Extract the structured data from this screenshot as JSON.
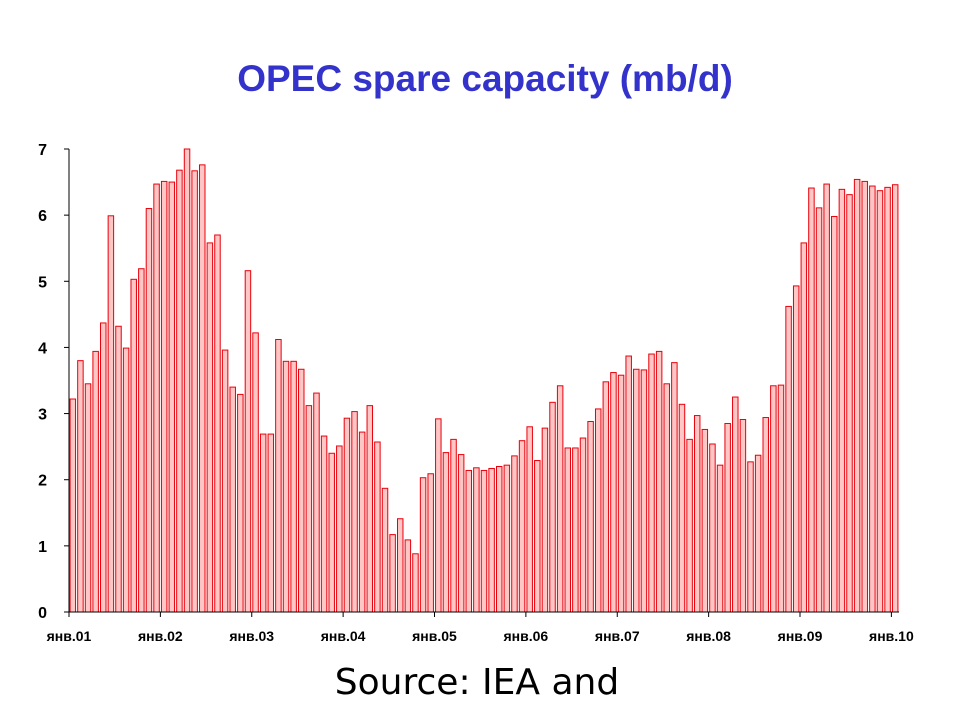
{
  "chart_data": {
    "type": "bar",
    "title": "OPEC spare capacity (mb/d)",
    "xlabel": "",
    "ylabel": "",
    "ylim": [
      0,
      7
    ],
    "yticks": [
      0,
      1,
      2,
      3,
      4,
      5,
      6,
      7
    ],
    "xtick_labels": [
      "янв.01",
      "янв.02",
      "янв.03",
      "янв.04",
      "янв.05",
      "янв.06",
      "янв.07",
      "янв.08",
      "янв.09",
      "янв.10"
    ],
    "grid": false,
    "legend": "none",
    "colors": {
      "bar_fill": "#ffc6c6",
      "bar_stroke": "#e8000b",
      "axis": "#000000"
    },
    "values": [
      3.22,
      3.8,
      3.45,
      3.94,
      4.37,
      5.99,
      4.32,
      3.99,
      5.03,
      5.19,
      6.1,
      6.47,
      6.51,
      6.5,
      6.68,
      7.0,
      6.67,
      6.76,
      5.58,
      5.7,
      3.96,
      3.4,
      3.29,
      5.16,
      4.22,
      2.69,
      2.69,
      4.12,
      3.79,
      3.79,
      3.67,
      3.12,
      3.31,
      2.66,
      2.4,
      2.51,
      2.93,
      3.03,
      2.72,
      3.12,
      2.57,
      1.87,
      1.17,
      1.41,
      1.09,
      0.88,
      2.03,
      2.09,
      2.92,
      2.41,
      2.61,
      2.38,
      2.14,
      2.18,
      2.14,
      2.17,
      2.2,
      2.22,
      2.36,
      2.59,
      2.8,
      2.29,
      2.78,
      3.17,
      3.42,
      2.48,
      2.48,
      2.63,
      2.88,
      3.07,
      3.48,
      3.62,
      3.58,
      3.87,
      3.67,
      3.66,
      3.9,
      3.94,
      3.45,
      3.77,
      3.14,
      2.61,
      2.97,
      2.76,
      2.54,
      2.22,
      2.85,
      3.25,
      2.91,
      2.27,
      2.37,
      2.94,
      3.42,
      3.43,
      4.62,
      4.93,
      5.58,
      6.41,
      6.11,
      6.47,
      5.98,
      6.39,
      6.31,
      6.54,
      6.51,
      6.44,
      6.37,
      6.42,
      6.46
    ]
  },
  "footer": {
    "source_text": "Source: IEA and"
  }
}
